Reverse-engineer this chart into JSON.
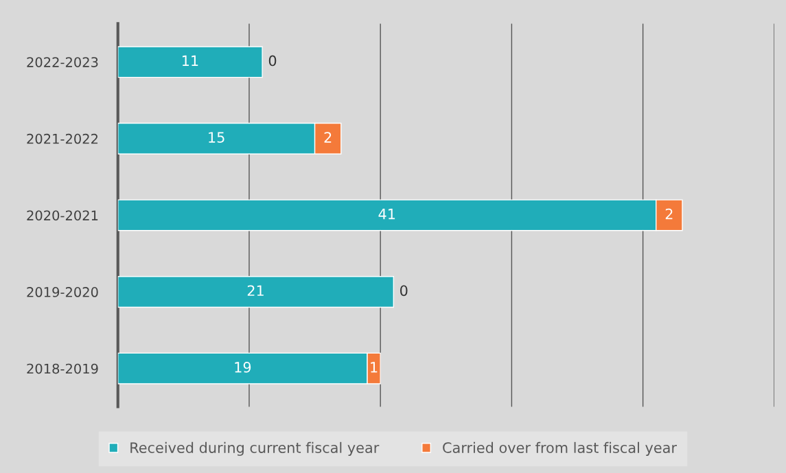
{
  "chart_data": {
    "type": "bar",
    "orientation": "horizontal",
    "stacked": true,
    "categories": [
      "2022-2023",
      "2021-2022",
      "2020-2021",
      "2019-2020",
      "2018-2019"
    ],
    "series": [
      {
        "name": "Received during current fiscal year",
        "color": "#20adb9",
        "values": [
          11,
          15,
          41,
          21,
          19
        ]
      },
      {
        "name": "Carried over from last fiscal year",
        "color": "#f47a3a",
        "values": [
          0,
          2,
          2,
          0,
          1
        ]
      }
    ],
    "xlim": [
      0,
      50
    ],
    "xticks": [
      {
        "value": 0,
        "label": null
      },
      {
        "value": 10,
        "label": null
      },
      {
        "value": 20,
        "label": null
      },
      {
        "value": 30,
        "label": null
      },
      {
        "value": 40,
        "label": null
      },
      {
        "value": 50,
        "label": null
      }
    ],
    "tick_labels": "y",
    "grid": "x",
    "legend": "bottom",
    "data_labels": true
  }
}
